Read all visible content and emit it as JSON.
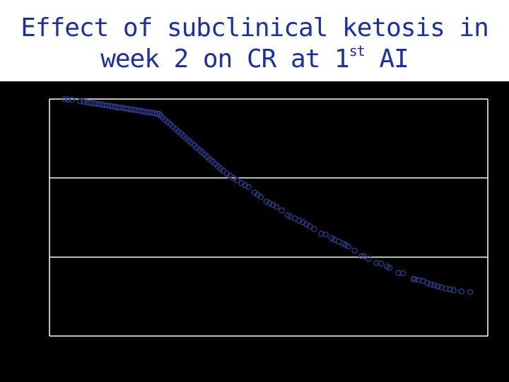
{
  "title": {
    "line1": "Effect of subclinical ketosis in",
    "line2_main": "week 2 on CR at 1",
    "line2_sup": "st",
    "line2_end": " AI"
  },
  "colors": {
    "title": "#1a2fa8",
    "background": "#000000",
    "gridlines": "#ffffff",
    "markers": "#2a3f8f"
  },
  "chart_data": {
    "type": "scatter",
    "title": "Effect of subclinical ketosis in week 2 on CR at 1st AI",
    "xlabel": "",
    "ylabel": "",
    "xlim": [
      0,
      100
    ],
    "ylim": [
      0,
      100
    ],
    "yticks": [
      0,
      33.3,
      66.7,
      100
    ],
    "grid": "horizontal",
    "marker": "open-circle",
    "series": [
      {
        "points": [
          [
            3.4,
            100
          ],
          [
            4.2,
            99.8
          ],
          [
            5.1,
            99.6
          ],
          [
            7.0,
            99.0
          ],
          [
            7.8,
            98.9
          ],
          [
            8.5,
            98.7
          ],
          [
            9.1,
            98.5
          ],
          [
            9.6,
            98.3
          ],
          [
            10.2,
            98.2
          ],
          [
            10.8,
            98.0
          ],
          [
            11.4,
            97.8
          ],
          [
            12.0,
            97.6
          ],
          [
            12.6,
            97.4
          ],
          [
            13.2,
            97.3
          ],
          [
            13.8,
            97.1
          ],
          [
            14.4,
            96.9
          ],
          [
            15.0,
            96.7
          ],
          [
            15.6,
            96.5
          ],
          [
            16.2,
            96.4
          ],
          [
            16.8,
            96.2
          ],
          [
            17.4,
            96.0
          ],
          [
            18.0,
            95.8
          ],
          [
            18.6,
            95.6
          ],
          [
            19.2,
            95.5
          ],
          [
            19.8,
            95.3
          ],
          [
            20.4,
            95.1
          ],
          [
            21.0,
            94.9
          ],
          [
            21.6,
            94.7
          ],
          [
            22.2,
            94.5
          ],
          [
            22.8,
            94.4
          ],
          [
            23.4,
            94.2
          ],
          [
            24.0,
            94.0
          ],
          [
            24.6,
            93.8
          ],
          [
            25.1,
            93.7
          ],
          [
            25.3,
            93.0
          ],
          [
            25.8,
            92.2
          ],
          [
            26.4,
            91.2
          ],
          [
            27.0,
            90.2
          ],
          [
            27.6,
            89.3
          ],
          [
            28.2,
            88.3
          ],
          [
            28.8,
            87.3
          ],
          [
            29.4,
            86.3
          ],
          [
            30.0,
            85.4
          ],
          [
            30.6,
            84.4
          ],
          [
            31.2,
            83.4
          ],
          [
            31.8,
            82.4
          ],
          [
            32.4,
            81.5
          ],
          [
            33.0,
            80.5
          ],
          [
            33.6,
            79.5
          ],
          [
            34.2,
            78.5
          ],
          [
            34.8,
            77.6
          ],
          [
            35.4,
            76.6
          ],
          [
            36.0,
            75.6
          ],
          [
            36.6,
            74.6
          ],
          [
            37.2,
            73.7
          ],
          [
            37.8,
            72.7
          ],
          [
            38.4,
            71.7
          ],
          [
            39.0,
            70.7
          ],
          [
            39.6,
            69.8
          ],
          [
            40.5,
            68.5
          ],
          [
            41.2,
            67.6
          ],
          [
            42.0,
            66.6
          ],
          [
            42.8,
            65.7
          ],
          [
            43.8,
            64.5
          ],
          [
            44.6,
            63.6
          ],
          [
            45.4,
            62.9
          ],
          [
            46.8,
            60.5
          ],
          [
            47.5,
            59.6
          ],
          [
            48.2,
            58.7
          ],
          [
            49.5,
            56.7
          ],
          [
            50.2,
            56.0
          ],
          [
            51.0,
            55.3
          ],
          [
            51.8,
            54.5
          ],
          [
            53.0,
            53.0
          ],
          [
            54.4,
            51.0
          ],
          [
            55.0,
            50.4
          ],
          [
            56.0,
            49.6
          ],
          [
            57.0,
            48.7
          ],
          [
            57.8,
            48.0
          ],
          [
            58.6,
            47.1
          ],
          [
            59.4,
            46.3
          ],
          [
            60.4,
            45.1
          ],
          [
            62.0,
            43.1
          ],
          [
            63.0,
            42.8
          ],
          [
            64.4,
            41.3
          ],
          [
            65.0,
            40.7
          ],
          [
            66.0,
            39.8
          ],
          [
            67.0,
            39.0
          ],
          [
            67.6,
            38.4
          ],
          [
            68.2,
            37.8
          ],
          [
            69.6,
            36.0
          ],
          [
            71.2,
            33.7
          ],
          [
            71.8,
            33.6
          ],
          [
            72.8,
            32.6
          ],
          [
            74.6,
            30.8
          ],
          [
            75.6,
            30.6
          ],
          [
            77.0,
            29.4
          ],
          [
            77.6,
            28.8
          ],
          [
            79.6,
            26.6
          ],
          [
            80.6,
            26.5
          ],
          [
            83.0,
            24.1
          ],
          [
            83.4,
            23.9
          ],
          [
            84.2,
            23.6
          ],
          [
            85.2,
            23.2
          ],
          [
            86.2,
            22.4
          ],
          [
            87.0,
            21.8
          ],
          [
            87.8,
            21.4
          ],
          [
            88.6,
            21.0
          ],
          [
            89.4,
            20.5
          ],
          [
            90.4,
            20.0
          ],
          [
            91.4,
            19.7
          ],
          [
            92.2,
            19.3
          ],
          [
            94.0,
            18.8
          ],
          [
            96.0,
            18.5
          ]
        ]
      }
    ]
  }
}
